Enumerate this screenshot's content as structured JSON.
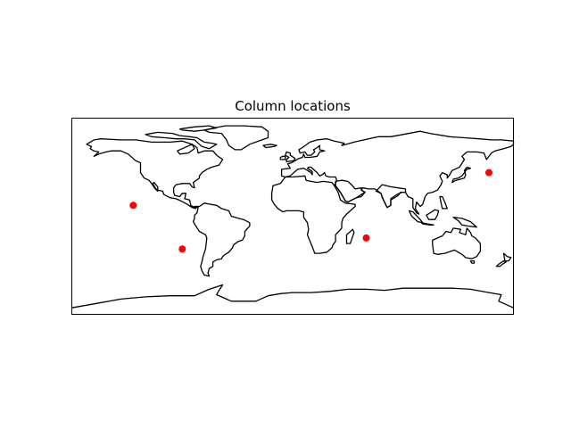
{
  "figure": {
    "title": "Column locations",
    "extent": {
      "lon": [
        -180,
        180
      ],
      "lat": [
        -90,
        90
      ]
    },
    "marker_color": "#ff0000",
    "coastline_color": "#000000"
  },
  "chart_data": {
    "type": "scatter",
    "title": "Column locations",
    "xlabel": "",
    "ylabel": "",
    "xlim": [
      -180,
      180
    ],
    "ylim": [
      -90,
      90
    ],
    "grid": false,
    "points": [
      {
        "lon": -130,
        "lat": 10
      },
      {
        "lon": -90,
        "lat": -30
      },
      {
        "lon": 60,
        "lat": -20
      },
      {
        "lon": 160,
        "lat": 40
      }
    ]
  }
}
